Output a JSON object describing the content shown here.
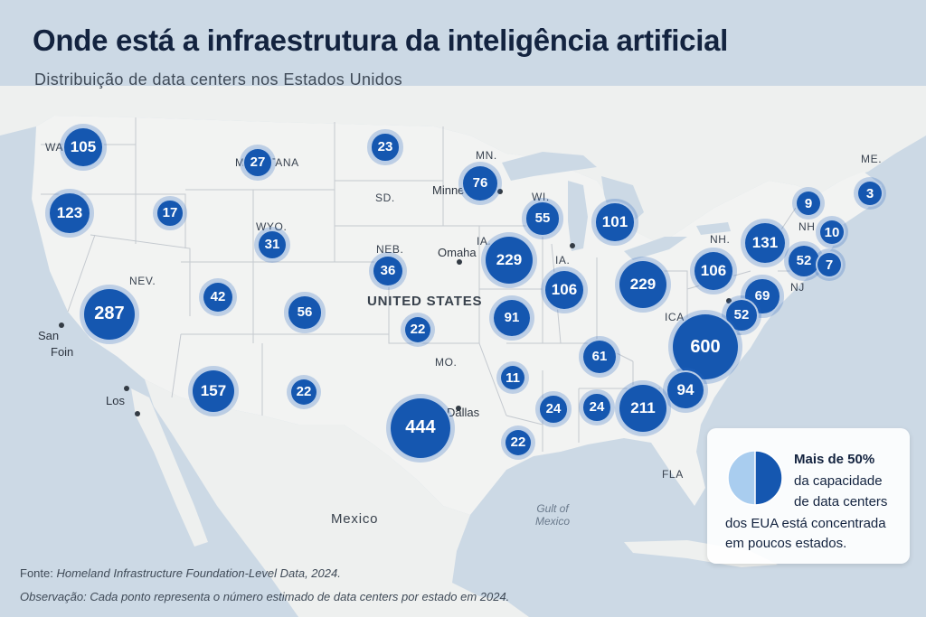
{
  "title": "Onde está a infraestrutura da inteligência artificial",
  "subtitle": "Distribuição de data centers nos Estados Unidos",
  "colors": {
    "bubble": "#1557b0",
    "land": "#f2f3f2",
    "water": "#ccd9e5",
    "pie_dark": "#1557b0",
    "pie_light": "#a9cdef"
  },
  "state_labels": [
    "WA",
    "MO",
    "NTANA",
    "MN.",
    "SD.",
    "WI.",
    "WYO.",
    "NEB.",
    "IA.",
    "IA.",
    "NEV.",
    "NH.",
    "MO.",
    "ICA",
    "FLA",
    "ME.",
    "NH",
    "NJ"
  ],
  "cities": [
    "Minne",
    "Omaha",
    "Dallas",
    "San",
    "Foin",
    "Los"
  ],
  "country_labels": {
    "us": "UNITED STATES",
    "mexico": "Mexico"
  },
  "water_labels": {
    "gulf": [
      "Gult of",
      "Mexico"
    ]
  },
  "bubbles": [
    {
      "value": 105
    },
    {
      "value": 123
    },
    {
      "value": 17
    },
    {
      "value": 27
    },
    {
      "value": 23
    },
    {
      "value": 76
    },
    {
      "value": 31
    },
    {
      "value": 55
    },
    {
      "value": 101
    },
    {
      "value": 9
    },
    {
      "value": 3
    },
    {
      "value": 10
    },
    {
      "value": 131
    },
    {
      "value": 52
    },
    {
      "value": 7
    },
    {
      "value": 229
    },
    {
      "value": 36
    },
    {
      "value": 287
    },
    {
      "value": 42
    },
    {
      "value": 56
    },
    {
      "value": 106
    },
    {
      "value": 229
    },
    {
      "value": 106
    },
    {
      "value": 69
    },
    {
      "value": 52
    },
    {
      "value": 22
    },
    {
      "value": 91
    },
    {
      "value": 600
    },
    {
      "value": 61
    },
    {
      "value": 157
    },
    {
      "value": 22
    },
    {
      "value": 11
    },
    {
      "value": 94
    },
    {
      "value": 24
    },
    {
      "value": 24
    },
    {
      "value": 211
    },
    {
      "value": 444
    },
    {
      "value": 22
    }
  ],
  "callout": {
    "pie_share": 0.5,
    "strong": "Mais de 50%",
    "lines": [
      "da capacidade",
      "de data centers",
      "dos EUA está concentrada",
      "em poucos estados."
    ]
  },
  "footer": {
    "source_label": "Fonte:",
    "source_text": "Homeland Infrastructure Foundation-Level Data, 2024.",
    "note_label": "Observação:",
    "note_text": "Cada ponto representa o número estimado de data centers por estado em 2024."
  }
}
